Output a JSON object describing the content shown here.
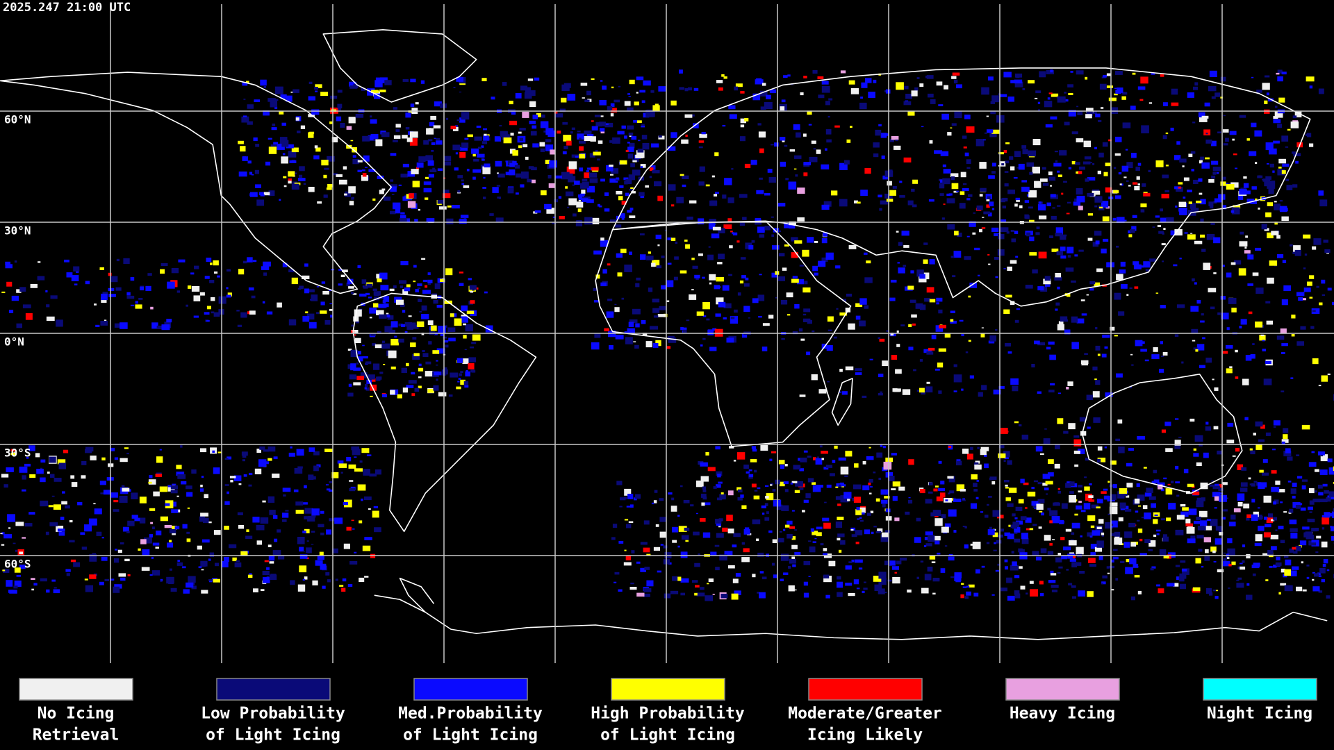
{
  "header": {
    "timestamp": "2025.247 21:00 UTC"
  },
  "map": {
    "lat_labels": [
      "60°N",
      "30°N",
      "0°N",
      "30°S",
      "60°S"
    ]
  },
  "legend": {
    "items": [
      {
        "label": [
          "No Icing",
          "Retrieval"
        ],
        "color": "#f0f0f0"
      },
      {
        "label": [
          "Low Probability",
          "of Light Icing"
        ],
        "color": "#0a0a78"
      },
      {
        "label": [
          "Med.Probability",
          "of Light Icing"
        ],
        "color": "#0a0aff"
      },
      {
        "label": [
          "High Probability",
          "of Light Icing"
        ],
        "color": "#ffff00"
      },
      {
        "label": [
          "Moderate/Greater",
          "Icing Likely"
        ],
        "color": "#ff0000"
      },
      {
        "label": [
          "Heavy Icing"
        ],
        "color": "#e8a0e0"
      },
      {
        "label": [
          "Night Icing"
        ],
        "color": "#00ffff"
      }
    ]
  }
}
